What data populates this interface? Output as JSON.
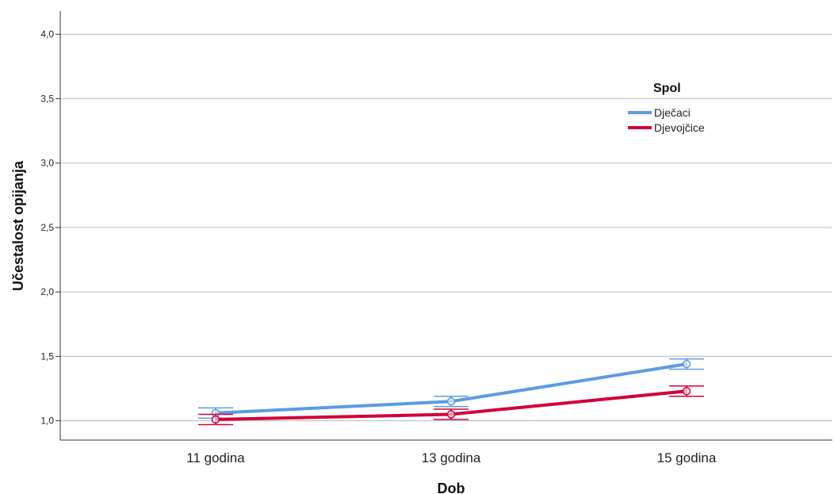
{
  "chart_data": {
    "type": "line",
    "xlabel": "Dob",
    "ylabel": "Učestalost opijanja",
    "categories": [
      "11 godina",
      "13 godina",
      "15 godina"
    ],
    "ylim": [
      0.85,
      4.18
    ],
    "yticks": [
      "1,0",
      "1,5",
      "2,0",
      "2,5",
      "3,0",
      "3,5",
      "4,0"
    ],
    "ytick_values": [
      1.0,
      1.5,
      2.0,
      2.5,
      3.0,
      3.5,
      4.0
    ],
    "grid": true,
    "legend": {
      "title": "Spol",
      "placement": "top-right"
    },
    "series": [
      {
        "name": "Dječaci",
        "color": "#5b9be5",
        "values": [
          1.06,
          1.15,
          1.44
        ],
        "err_low": [
          1.02,
          1.11,
          1.4
        ],
        "err_high": [
          1.1,
          1.19,
          1.48
        ]
      },
      {
        "name": "Djevojčice",
        "color": "#d1003a",
        "values": [
          1.01,
          1.05,
          1.23
        ],
        "err_low": [
          0.97,
          1.01,
          1.19
        ],
        "err_high": [
          1.05,
          1.09,
          1.27
        ]
      }
    ]
  }
}
